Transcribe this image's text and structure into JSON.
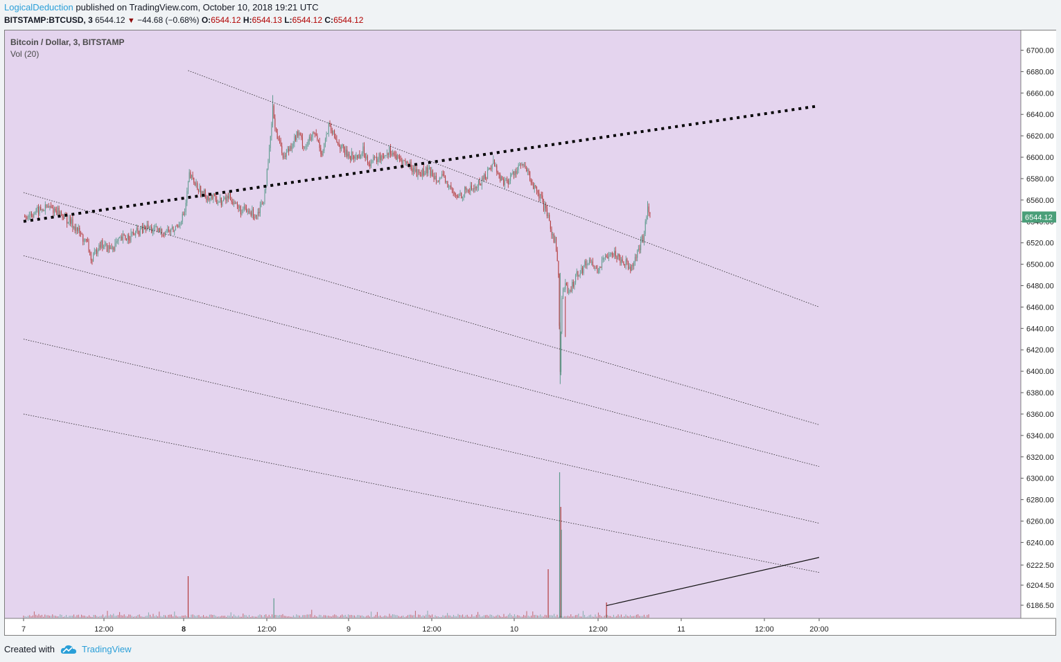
{
  "header": {
    "author": "LogicalDeduction",
    "published": "published on TradingView.com, October 10, 2018 19:21 UTC"
  },
  "symbol_line": {
    "symbol": "BITSTAMP:BTCUSD, 3",
    "last": "6544.12",
    "arrow": "▼",
    "change": "−44.68 (−0.68%)",
    "o_label": "O:",
    "o_value": "6544.12",
    "h_label": "H:",
    "h_value": "6544.13",
    "l_label": "L:",
    "l_value": "6544.12",
    "c_label": "C:",
    "c_value": "6544.12"
  },
  "legend": {
    "title": "Bitcoin / Dollar, 3, BITSTAMP",
    "volume": "Vol (20)"
  },
  "footer": {
    "created_with": "Created with",
    "brand": "TradingView",
    "brand_icon": "tradingview-cloud-icon"
  },
  "colors": {
    "plot_bg": "#e4d4ee",
    "up": "#5b9a8c",
    "down": "#b33a3a",
    "price_badge": "#4a9f79",
    "brand": "#2a9fd8"
  },
  "chart_data": {
    "type": "candlestick",
    "title": "Bitcoin / Dollar, 3, BITSTAMP",
    "ylim": [
      6180,
      6708
    ],
    "y_ticks": [
      6700,
      6680,
      6660,
      6640,
      6620,
      6600,
      6580,
      6560,
      6540,
      6520,
      6500,
      6480,
      6460,
      6440,
      6420,
      6400,
      6380,
      6360,
      6340,
      6320,
      6300,
      6280,
      6260,
      6240
    ],
    "y_ticks_low": [
      "6222.50",
      "6204.50",
      "6186.50"
    ],
    "last_price": "6544.12",
    "x_ticks": [
      "7",
      "12:00",
      "8",
      "12:00",
      "9",
      "12:00",
      "10",
      "12:00",
      "11",
      "12:00",
      "20:00"
    ],
    "x_ticks_bold": [
      "8"
    ],
    "price_path": [
      [
        "Oct 7 00:00",
        6545
      ],
      [
        "Oct 7 01:30",
        6548
      ],
      [
        "Oct 7 03:30",
        6553
      ],
      [
        "Oct 7 05:00",
        6550
      ],
      [
        "Oct 7 07:30",
        6535
      ],
      [
        "Oct 7 09:20",
        6518
      ],
      [
        "Oct 7 10:00",
        6502
      ],
      [
        "Oct 7 11:00",
        6520
      ],
      [
        "Oct 7 12:30",
        6514
      ],
      [
        "Oct 7 14:30",
        6524
      ],
      [
        "Oct 7 16:00",
        6528
      ],
      [
        "Oct 7 18:00",
        6534
      ],
      [
        "Oct 7 20:00",
        6530
      ],
      [
        "Oct 7 22:00",
        6532
      ],
      [
        "Oct 7 23:30",
        6548
      ],
      [
        "Oct 8 00:10",
        6583
      ],
      [
        "Oct 8 01:00",
        6575
      ],
      [
        "Oct 8 02:00",
        6566
      ],
      [
        "Oct 8 03:30",
        6562
      ],
      [
        "Oct 8 05:00",
        6558
      ],
      [
        "Oct 8 06:00",
        6564
      ],
      [
        "Oct 8 07:30",
        6551
      ],
      [
        "Oct 8 09:00",
        6548
      ],
      [
        "Oct 8 10:00",
        6547
      ],
      [
        "Oct 8 11:00",
        6562
      ],
      [
        "Oct 8 11:40",
        6592
      ],
      [
        "Oct 8 12:20",
        6644
      ],
      [
        "Oct 8 13:00",
        6620
      ],
      [
        "Oct 8 14:00",
        6600
      ],
      [
        "Oct 8 15:00",
        6612
      ],
      [
        "Oct 8 16:00",
        6622
      ],
      [
        "Oct 8 17:00",
        6610
      ],
      [
        "Oct 8 18:30",
        6622
      ],
      [
        "Oct 8 19:30",
        6604
      ],
      [
        "Oct 8 20:30",
        6628
      ],
      [
        "Oct 8 21:30",
        6617
      ],
      [
        "Oct 8 23:00",
        6603
      ],
      [
        "Oct 9 00:30",
        6600
      ],
      [
        "Oct 9 01:30",
        6606
      ],
      [
        "Oct 9 02:30",
        6595
      ],
      [
        "Oct 9 04:00",
        6600
      ],
      [
        "Oct 9 05:30",
        6607
      ],
      [
        "Oct 9 06:30",
        6598
      ],
      [
        "Oct 9 08:00",
        6594
      ],
      [
        "Oct 9 09:30",
        6585
      ],
      [
        "Oct 9 11:00",
        6587
      ],
      [
        "Oct 9 12:00",
        6583
      ],
      [
        "Oct 9 13:30",
        6578
      ],
      [
        "Oct 9 15:00",
        6562
      ],
      [
        "Oct 9 16:30",
        6569
      ],
      [
        "Oct 9 18:00",
        6572
      ],
      [
        "Oct 9 19:30",
        6584
      ],
      [
        "Oct 9 20:30",
        6596
      ],
      [
        "Oct 9 21:30",
        6580
      ],
      [
        "Oct 9 22:30",
        6576
      ],
      [
        "Oct 9 23:30",
        6586
      ],
      [
        "Oct 10 00:30",
        6593
      ],
      [
        "Oct 10 01:30",
        6586
      ],
      [
        "Oct 10 02:30",
        6570
      ],
      [
        "Oct 10 03:30",
        6560
      ],
      [
        "Oct 10 04:30",
        6542
      ],
      [
        "Oct 10 05:00",
        6530
      ],
      [
        "Oct 10 05:30",
        6522
      ],
      [
        "Oct 10 06:00",
        6492
      ],
      [
        "Oct 10 06:15",
        6400
      ],
      [
        "Oct 10 06:30",
        6470
      ],
      [
        "Oct 10 07:00",
        6482
      ],
      [
        "Oct 10 07:30",
        6470
      ],
      [
        "Oct 10 08:30",
        6490
      ],
      [
        "Oct 10 09:30",
        6496
      ],
      [
        "Oct 10 10:30",
        6505
      ],
      [
        "Oct 10 11:30",
        6494
      ],
      [
        "Oct 10 12:30",
        6502
      ],
      [
        "Oct 10 13:30",
        6513
      ],
      [
        "Oct 10 14:30",
        6508
      ],
      [
        "Oct 10 15:30",
        6503
      ],
      [
        "Oct 10 16:30",
        6498
      ],
      [
        "Oct 10 17:30",
        6510
      ],
      [
        "Oct 10 18:30",
        6528
      ],
      [
        "Oct 10 19:00",
        6556
      ],
      [
        "Oct 10 19:21",
        6544
      ]
    ],
    "volume_spikes": [
      [
        "Oct 8 00:00",
        60
      ],
      [
        "Oct 8 12:30",
        28
      ],
      [
        "Oct 10 04:30",
        70
      ],
      [
        "Oct 10 06:10",
        210
      ],
      [
        "Oct 10 06:20",
        160
      ],
      [
        "Oct 10 06:25",
        127
      ],
      [
        "Oct 10 13:00",
        22
      ]
    ],
    "trend_lines": [
      {
        "style": "bold-dotted",
        "from": [
          "Oct 7 00:00",
          6540
        ],
        "to": [
          "Oct 11 20:00",
          6648
        ]
      },
      {
        "style": "dotted",
        "from": [
          "Oct 8 00:00",
          6681
        ],
        "to": [
          "Oct 11 20:00",
          6460
        ]
      },
      {
        "style": "dotted",
        "from": [
          "Oct 7 00:00",
          6567
        ],
        "to": [
          "Oct 11 20:00",
          6350
        ]
      },
      {
        "style": "dotted",
        "from": [
          "Oct 7 00:00",
          6508
        ],
        "to": [
          "Oct 11 20:00",
          6311
        ]
      },
      {
        "style": "dotted",
        "from": [
          "Oct 7 00:00",
          6430
        ],
        "to": [
          "Oct 11 20:00",
          6258
        ]
      },
      {
        "style": "dotted",
        "from": [
          "Oct 7 00:00",
          6360
        ],
        "to": [
          "Oct 11 20:00",
          6212
        ]
      },
      {
        "style": "solid",
        "from": [
          "Oct 10 13:00",
          6181
        ],
        "to": [
          "Oct 11 20:00",
          6226
        ]
      }
    ]
  }
}
